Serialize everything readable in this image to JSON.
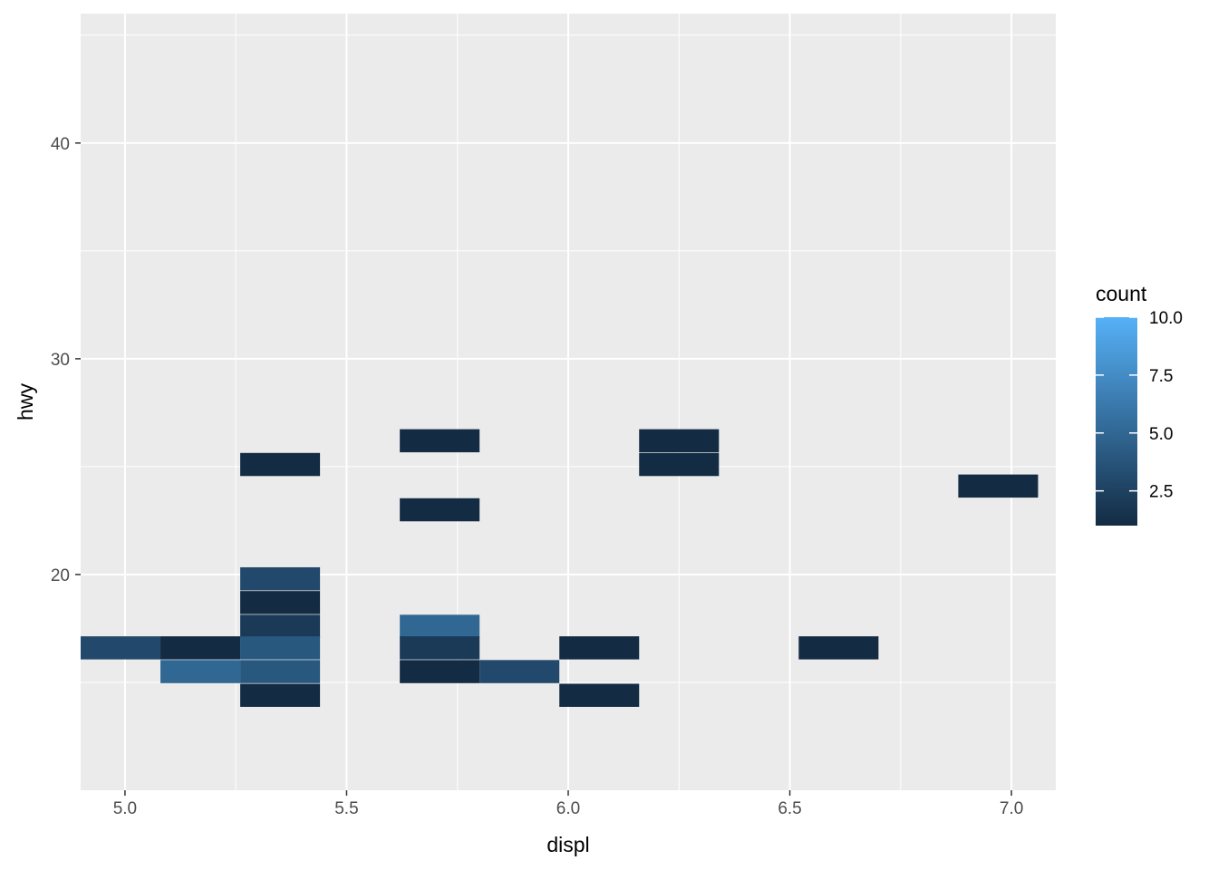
{
  "chart_data": {
    "type": "heatmap",
    "xlabel": "displ",
    "ylabel": "hwy",
    "xlim": [
      4.9,
      7.1
    ],
    "ylim": [
      10,
      46
    ],
    "x_ticks": [
      5.0,
      5.5,
      6.0,
      6.5,
      7.0
    ],
    "x_tick_labels": [
      "5.0",
      "5.5",
      "6.0",
      "6.5",
      "7.0"
    ],
    "y_ticks": [
      20,
      30,
      40
    ],
    "y_tick_labels": [
      "20",
      "30",
      "40"
    ],
    "x_minor": [
      5.25,
      5.75,
      6.25,
      6.75
    ],
    "y_minor": [
      15,
      25,
      35,
      45
    ],
    "grid": true,
    "bin_width_x": 0.18,
    "bin_height_y": 1.07,
    "cells": [
      {
        "x": 4.99,
        "y": 16.6,
        "count": 3
      },
      {
        "x": 5.17,
        "y": 16.6,
        "count": 1
      },
      {
        "x": 5.17,
        "y": 15.5,
        "count": 5
      },
      {
        "x": 5.35,
        "y": 19.8,
        "count": 3
      },
      {
        "x": 5.35,
        "y": 18.7,
        "count": 1
      },
      {
        "x": 5.35,
        "y": 17.6,
        "count": 2
      },
      {
        "x": 5.35,
        "y": 16.6,
        "count": 4
      },
      {
        "x": 5.35,
        "y": 15.5,
        "count": 4
      },
      {
        "x": 5.35,
        "y": 14.4,
        "count": 1
      },
      {
        "x": 5.35,
        "y": 25.1,
        "count": 1
      },
      {
        "x": 5.71,
        "y": 26.2,
        "count": 1
      },
      {
        "x": 5.71,
        "y": 23.0,
        "count": 1
      },
      {
        "x": 5.71,
        "y": 17.6,
        "count": 5
      },
      {
        "x": 5.71,
        "y": 16.6,
        "count": 2
      },
      {
        "x": 5.71,
        "y": 15.5,
        "count": 1
      },
      {
        "x": 5.89,
        "y": 15.5,
        "count": 3
      },
      {
        "x": 6.07,
        "y": 16.6,
        "count": 1
      },
      {
        "x": 6.07,
        "y": 14.4,
        "count": 1
      },
      {
        "x": 6.25,
        "y": 26.2,
        "count": 1
      },
      {
        "x": 6.25,
        "y": 25.1,
        "count": 1
      },
      {
        "x": 6.61,
        "y": 16.6,
        "count": 1
      },
      {
        "x": 6.97,
        "y": 24.1,
        "count": 1
      }
    ],
    "legend": {
      "title": "count",
      "placement": "right",
      "breaks": [
        2.5,
        5.0,
        7.5,
        10.0
      ],
      "break_labels": [
        "2.5",
        "5.0",
        "7.5",
        "10.0"
      ],
      "range": [
        1,
        10
      ],
      "low_color": "#132B43",
      "high_color": "#56B1F7"
    },
    "panel_background": "#EBEBEB",
    "grid_color": "#FFFFFF"
  }
}
